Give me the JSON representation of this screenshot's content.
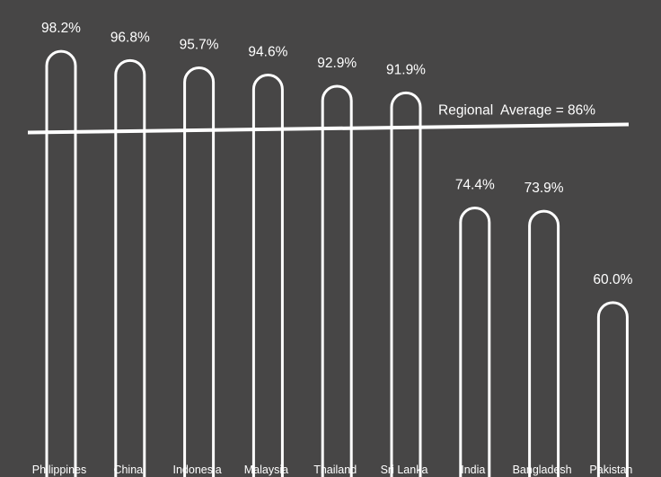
{
  "chart_data": {
    "type": "bar",
    "categories": [
      "Philippines",
      "China",
      "Indonesia",
      "Malaysia",
      "Thailand",
      "Sri Lanka",
      "India",
      "Bangladesh",
      "Pakistan"
    ],
    "values": [
      98.2,
      96.8,
      95.7,
      94.6,
      92.9,
      91.9,
      74.4,
      73.9,
      60.0
    ],
    "value_labels": [
      "98.2%",
      "96.8%",
      "95.7%",
      "94.6%",
      "92.9%",
      "91.9%",
      "74.4%",
      "73.9%",
      "60.0%"
    ],
    "reference_line": {
      "value": 86,
      "label": "Regional  Average = 86%"
    },
    "title": "",
    "xlabel": "",
    "ylabel": "",
    "grid": false,
    "colors": {
      "background": "#474646",
      "bars": "#ffffff",
      "text": "#ffffff"
    }
  }
}
